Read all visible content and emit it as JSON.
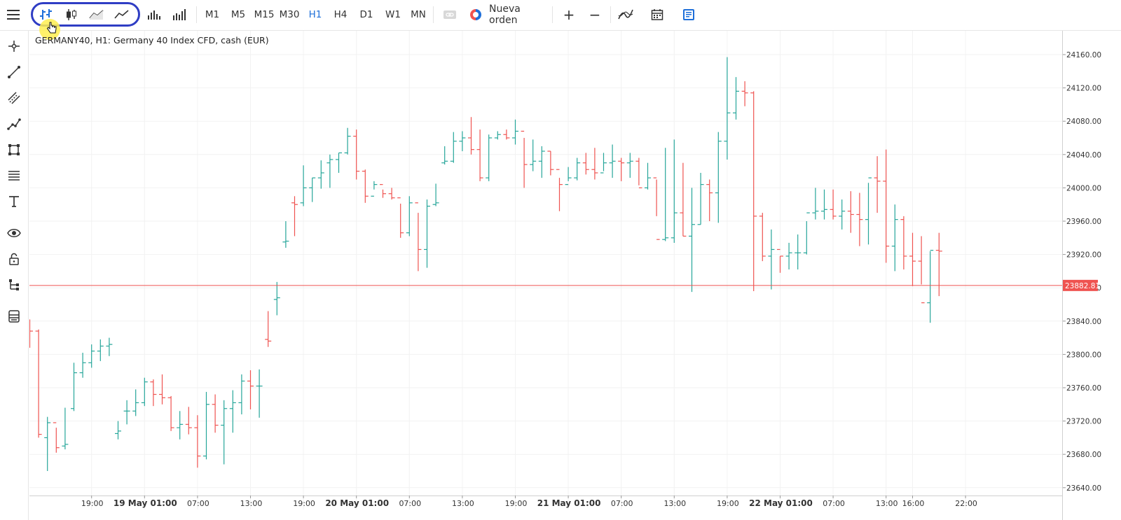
{
  "toolbar": {
    "menu_icon": "hamburger-menu-icon",
    "chart_types": [
      {
        "name": "bars-chart-icon",
        "active": true
      },
      {
        "name": "candles-chart-icon",
        "active": false
      },
      {
        "name": "line-chart-icon",
        "active": false
      },
      {
        "name": "area-chart-icon",
        "active": false
      }
    ],
    "volume_icons": [
      "volume-bars-icon",
      "volume-profile-icon"
    ],
    "timeframes": [
      "M1",
      "M5",
      "M15",
      "M30",
      "H1",
      "H4",
      "D1",
      "W1",
      "MN"
    ],
    "active_timeframe": "H1",
    "new_order_label": "Nueva orden",
    "zoom_in_label": "+",
    "zoom_out_label": "−",
    "indicators_icon": "indicators-icon",
    "calendar_icon": "calendar-icon",
    "template_icon": "template-icon",
    "colors": {
      "active": "#1e6fd9",
      "highlight_ring": "#2f3dc4"
    }
  },
  "left_tools": [
    "crosshair-icon",
    "trend-line-icon",
    "channel-icon",
    "polyline-icon",
    "shapes-icon",
    "fibonacci-icon",
    "text-icon",
    "visibility-icon",
    "lock-icon",
    "object-tree-icon",
    "layers-icon"
  ],
  "symbol_title": "GERMANY40, H1: Germany 40 Index CFD, cash (EUR)",
  "price_line": {
    "value": "23882.81",
    "color": "#ef5350"
  },
  "chart_data": {
    "type": "ohlc-bars",
    "symbol": "GERMANY40",
    "timeframe": "H1",
    "y_ticks": [
      "24160.00",
      "24120.00",
      "24080.00",
      "24040.00",
      "24000.00",
      "23960.00",
      "23920.00",
      "23880.00",
      "23840.00",
      "23800.00",
      "23760.00",
      "23720.00",
      "23680.00",
      "23640.00"
    ],
    "ylim": [
      23633,
      24189
    ],
    "x_ticks": [
      {
        "label": "19:00",
        "bar": 7,
        "bold": false
      },
      {
        "label": "19 May 01:00",
        "bar": 13,
        "bold": true
      },
      {
        "label": "07:00",
        "bar": 19,
        "bold": false
      },
      {
        "label": "13:00",
        "bar": 25,
        "bold": false
      },
      {
        "label": "19:00",
        "bar": 31,
        "bold": false
      },
      {
        "label": "20 May 01:00",
        "bar": 37,
        "bold": true
      },
      {
        "label": "07:00",
        "bar": 43,
        "bold": false
      },
      {
        "label": "13:00",
        "bar": 49,
        "bold": false
      },
      {
        "label": "19:00",
        "bar": 55,
        "bold": false
      },
      {
        "label": "21 May 01:00",
        "bar": 61,
        "bold": true
      },
      {
        "label": "07:00",
        "bar": 67,
        "bold": false
      },
      {
        "label": "13:00",
        "bar": 73,
        "bold": false
      },
      {
        "label": "19:00",
        "bar": 79,
        "bold": false
      },
      {
        "label": "22 May 01:00",
        "bar": 85,
        "bold": true
      },
      {
        "label": "07:00",
        "bar": 91,
        "bold": false
      },
      {
        "label": "13:00",
        "bar": 97,
        "bold": false
      },
      {
        "label": "16:00",
        "bar": 100,
        "bold": false
      },
      {
        "label": "22:00",
        "bar": 106,
        "bold": false
      }
    ],
    "bars": [
      [
        23830,
        23842,
        23808,
        23828
      ],
      [
        23828,
        23830,
        23700,
        23704
      ],
      [
        23700,
        23725,
        23660,
        23718
      ],
      [
        23718,
        23712,
        23682,
        23688
      ],
      [
        23690,
        23736,
        23686,
        23692
      ],
      [
        23735,
        23790,
        23732,
        23778
      ],
      [
        23778,
        23802,
        23772,
        23790
      ],
      [
        23790,
        23812,
        23784,
        23804
      ],
      [
        23804,
        23818,
        23792,
        23810
      ],
      [
        23810,
        23820,
        23798,
        23812
      ],
      [
        23705,
        23720,
        23698,
        23708
      ],
      [
        23732,
        23745,
        23716,
        23732
      ],
      [
        23732,
        23758,
        23726,
        23742
      ],
      [
        23742,
        23772,
        23738,
        23767
      ],
      [
        23767,
        23770,
        23738,
        23752
      ],
      [
        23752,
        23776,
        23740,
        23748
      ],
      [
        23748,
        23750,
        23708,
        23712
      ],
      [
        23712,
        23732,
        23698,
        23716
      ],
      [
        23716,
        23737,
        23704,
        23712
      ],
      [
        23712,
        23727,
        23664,
        23678
      ],
      [
        23678,
        23755,
        23674,
        23740
      ],
      [
        23740,
        23752,
        23706,
        23715
      ],
      [
        23715,
        23745,
        23668,
        23735
      ],
      [
        23735,
        23757,
        23706,
        23742
      ],
      [
        23742,
        23776,
        23728,
        23768
      ],
      [
        23768,
        23781,
        23734,
        23762
      ],
      [
        23762,
        23782,
        23724,
        23762
      ],
      [
        23818,
        23852,
        23809,
        23816
      ],
      [
        23866,
        23887,
        23847,
        23868
      ],
      [
        23935,
        23960,
        23928,
        23936
      ],
      [
        23982,
        23990,
        23942,
        23980
      ],
      [
        23982,
        24027,
        23978,
        24000
      ],
      [
        24000,
        24012,
        23983,
        24012
      ],
      [
        24012,
        24033,
        23999,
        24018
      ],
      [
        24030,
        24040,
        24000,
        24034
      ],
      [
        24034,
        24042,
        24018,
        24042
      ],
      [
        24042,
        24072,
        24040,
        24062
      ],
      [
        24062,
        24070,
        24010,
        24020
      ],
      [
        24020,
        24022,
        23982,
        23990
      ],
      [
        23990,
        24008,
        23998,
        24004
      ],
      [
        24004,
        23998,
        23988,
        23993
      ],
      [
        23993,
        24000,
        23986,
        23988
      ],
      [
        23988,
        23981,
        23940,
        23946
      ],
      [
        23946,
        23990,
        23942,
        23982
      ],
      [
        23982,
        23970,
        23900,
        23926
      ],
      [
        23926,
        23986,
        23904,
        23978
      ],
      [
        23980,
        24005,
        23978,
        23982
      ],
      [
        24030,
        24050,
        24028,
        24032
      ],
      [
        24032,
        24067,
        24030,
        24056
      ],
      [
        24056,
        24068,
        24044,
        24060
      ],
      [
        24060,
        24085,
        24040,
        24046
      ],
      [
        24046,
        24070,
        24008,
        24012
      ],
      [
        24012,
        24064,
        24008,
        24060
      ],
      [
        24060,
        24068,
        24058,
        24064
      ],
      [
        24064,
        24070,
        24058,
        24060
      ],
      [
        24060,
        24082,
        24052,
        24068
      ],
      [
        24068,
        24060,
        24000,
        24028
      ],
      [
        24028,
        24058,
        24020,
        24032
      ],
      [
        24032,
        24050,
        24012,
        24044
      ],
      [
        24044,
        24044,
        24015,
        24022
      ],
      [
        24022,
        24012,
        23972,
        24004
      ],
      [
        24004,
        24025,
        24008,
        24012
      ],
      [
        24012,
        24036,
        24009,
        24030
      ],
      [
        24030,
        24042,
        24016,
        24022
      ],
      [
        24022,
        24048,
        24010,
        24018
      ],
      [
        24018,
        24042,
        24020,
        24030
      ],
      [
        24030,
        24052,
        24012,
        24032
      ],
      [
        24032,
        24036,
        24008,
        24030
      ],
      [
        24030,
        24042,
        24012,
        24032
      ],
      [
        24032,
        24036,
        24003,
        24000
      ],
      [
        24000,
        24030,
        23998,
        24012
      ],
      [
        24012,
        24010,
        23966,
        23938
      ],
      [
        23938,
        24048,
        23936,
        23940
      ],
      [
        23940,
        24058,
        23934,
        23970
      ],
      [
        23970,
        24030,
        23942,
        23942
      ],
      [
        23942,
        24000,
        23875,
        23956
      ],
      [
        23956,
        24018,
        23956,
        24004
      ],
      [
        24004,
        24010,
        23960,
        23994
      ],
      [
        23994,
        24067,
        23958,
        24056
      ],
      [
        24056,
        24157,
        24034,
        24090
      ],
      [
        24090,
        24133,
        24082,
        24116
      ],
      [
        24116,
        24128,
        24098,
        24114
      ],
      [
        24114,
        24116,
        23876,
        23966
      ],
      [
        23966,
        23970,
        23912,
        23918
      ],
      [
        23918,
        23950,
        23878,
        23926
      ],
      [
        23926,
        23918,
        23898,
        23918
      ],
      [
        23918,
        23934,
        23902,
        23922
      ],
      [
        23922,
        23944,
        23902,
        23922
      ],
      [
        23922,
        23960,
        23920,
        23970
      ],
      [
        23970,
        24000,
        23962,
        23972
      ],
      [
        23972,
        23998,
        23962,
        23974
      ],
      [
        23974,
        23998,
        23962,
        23966
      ],
      [
        23966,
        23986,
        23950,
        23972
      ],
      [
        23972,
        23996,
        23946,
        23968
      ],
      [
        23968,
        23994,
        23930,
        23962
      ],
      [
        23962,
        24006,
        23932,
        24012
      ],
      [
        24012,
        24038,
        23970,
        24008
      ],
      [
        24008,
        24046,
        23910,
        23930
      ],
      [
        23930,
        23980,
        23900,
        23962
      ],
      [
        23962,
        23966,
        23902,
        23918
      ],
      [
        23918,
        23946,
        23882,
        23912
      ],
      [
        23912,
        23942,
        23884,
        23862
      ],
      [
        23862,
        23924,
        23838,
        23925
      ],
      [
        23925,
        23946,
        23870,
        23924
      ]
    ]
  }
}
